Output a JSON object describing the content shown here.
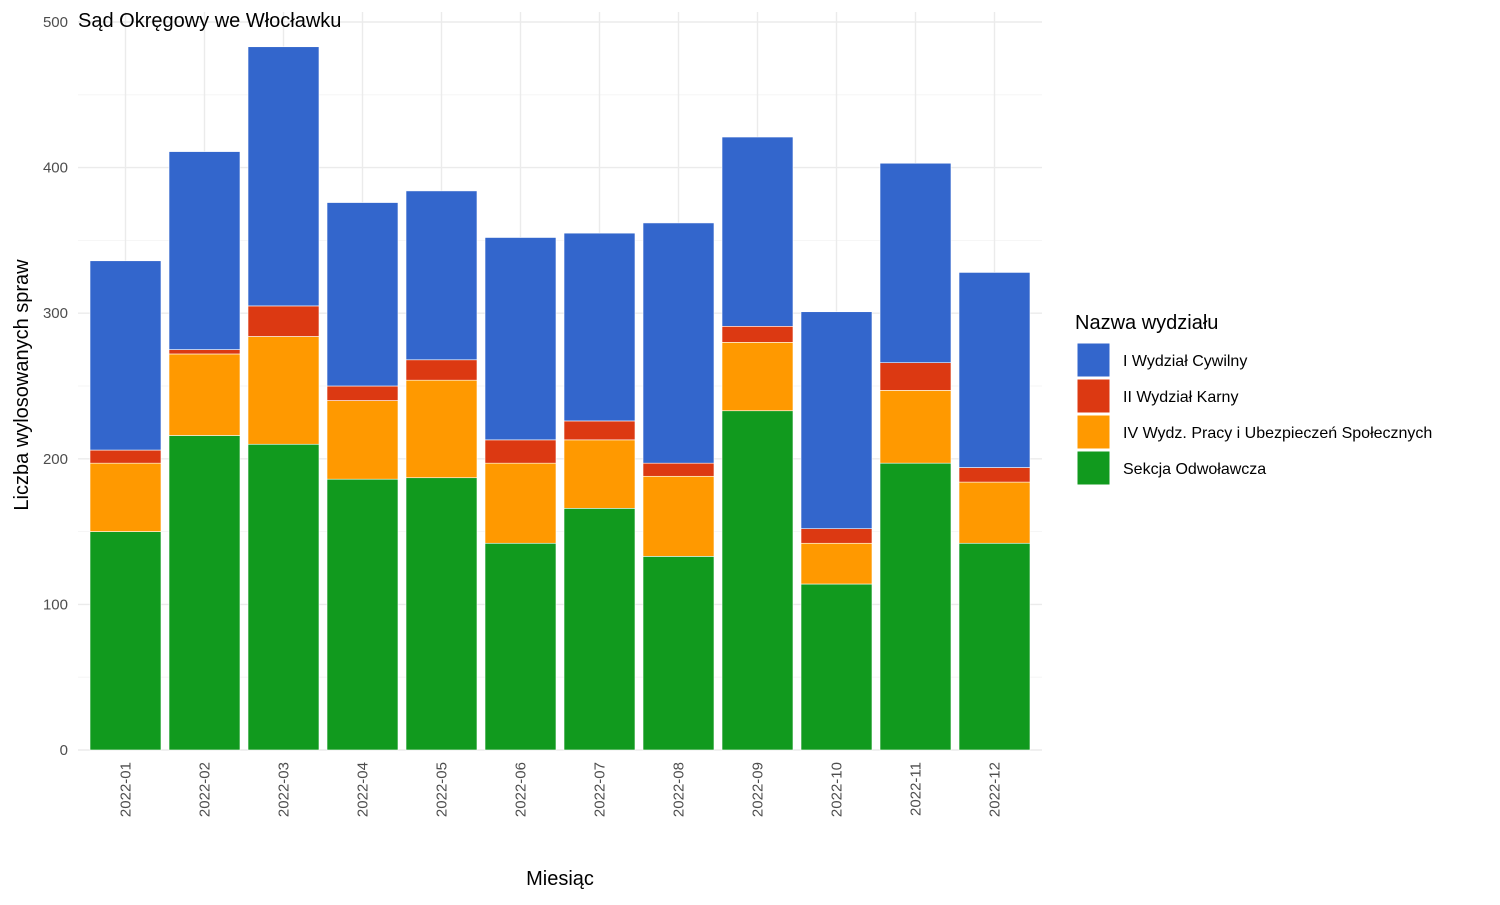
{
  "chart_data": {
    "type": "bar",
    "stacked": true,
    "title": "Sąd Okręgowy we Włocławku",
    "xlabel": "Miesiąc",
    "ylabel": "Liczba wylosowanych spraw",
    "ylim": [
      0,
      500
    ],
    "yticks": [
      0,
      100,
      200,
      300,
      400,
      500
    ],
    "grid": true,
    "legend": {
      "title": "Nazwa wydziału",
      "position": "right"
    },
    "categories": [
      "2022-01",
      "2022-02",
      "2022-03",
      "2022-04",
      "2022-05",
      "2022-06",
      "2022-07",
      "2022-08",
      "2022-09",
      "2022-10",
      "2022-11",
      "2022-12"
    ],
    "series": [
      {
        "name": "Sekcja Odwoławcza",
        "color": "#119a1e",
        "values": [
          150,
          216,
          210,
          186,
          187,
          142,
          166,
          133,
          233,
          114,
          197,
          142
        ]
      },
      {
        "name": "IV Wydz. Pracy i Ubezpieczeń Społecznych",
        "color": "#ff9900",
        "values": [
          47,
          56,
          74,
          54,
          67,
          55,
          47,
          55,
          47,
          28,
          50,
          42
        ]
      },
      {
        "name": "II Wydział Karny",
        "color": "#dc3912",
        "values": [
          9,
          3,
          21,
          10,
          14,
          16,
          13,
          9,
          11,
          10,
          19,
          10
        ]
      },
      {
        "name": "I Wydział Cywilny",
        "color": "#3366cc",
        "values": [
          130,
          136,
          178,
          126,
          116,
          139,
          129,
          165,
          130,
          149,
          137,
          134
        ]
      }
    ],
    "legend_order": [
      "I Wydział Cywilny",
      "II Wydział Karny",
      "IV Wydz. Pracy i Ubezpieczeń Społecznych",
      "Sekcja Odwoławcza"
    ]
  }
}
